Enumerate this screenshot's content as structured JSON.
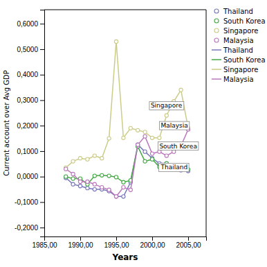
{
  "chart_data": {
    "type": "line",
    "xlabel": "Years",
    "ylabel": "Current account over Avg GDP",
    "x": [
      1988,
      1989,
      1990,
      1991,
      1992,
      1993,
      1994,
      1995,
      1996,
      1997,
      1998,
      1999,
      2000,
      2001,
      2002,
      2003,
      2004,
      2005
    ],
    "series": [
      {
        "name": "Thailand",
        "color": "#7777bb",
        "values": [
          -0.005,
          -0.03,
          -0.037,
          -0.045,
          -0.05,
          -0.05,
          -0.057,
          -0.078,
          -0.078,
          -0.022,
          0.125,
          0.098,
          0.072,
          0.052,
          0.052,
          0.038,
          0.025,
          0.022
        ]
      },
      {
        "name": "South Korea",
        "color": "#44aa44",
        "values": [
          0.0,
          -0.008,
          -0.008,
          -0.03,
          0.003,
          0.005,
          0.003,
          -0.002,
          -0.022,
          -0.015,
          0.118,
          0.06,
          0.068,
          0.038,
          0.052,
          0.038,
          0.038,
          0.028
        ]
      },
      {
        "name": "Singapore",
        "color": "#cccc88",
        "values": [
          0.035,
          0.06,
          0.072,
          0.068,
          0.082,
          0.072,
          0.15,
          0.53,
          0.152,
          0.19,
          0.182,
          0.175,
          0.152,
          0.152,
          0.24,
          0.295,
          0.34,
          0.19
        ]
      },
      {
        "name": "Malaysia",
        "color": "#bb77bb",
        "values": [
          0.03,
          0.01,
          -0.02,
          -0.02,
          -0.03,
          -0.042,
          -0.052,
          -0.078,
          -0.042,
          -0.052,
          0.125,
          0.158,
          0.09,
          0.098,
          0.082,
          0.098,
          0.12,
          0.185
        ]
      }
    ],
    "marker": "circle",
    "annotations": [
      {
        "text": "Singapore",
        "x": 1999.8,
        "y": 0.27
      },
      {
        "text": "Malaysia",
        "x": 2001.2,
        "y": 0.192
      },
      {
        "text": "South Korea",
        "x": 2001.0,
        "y": 0.112
      },
      {
        "text": "Thailand",
        "x": 2001.2,
        "y": 0.028
      }
    ],
    "xlim": [
      1985.0,
      2007.5
    ],
    "ylim": [
      -0.235,
      0.655
    ],
    "xticks": [
      {
        "value": 1985.0,
        "label": "1985,00"
      },
      {
        "value": 1990.0,
        "label": "1990,00"
      },
      {
        "value": 1995.0,
        "label": "1995,00"
      },
      {
        "value": 2000.0,
        "label": "2000,00"
      },
      {
        "value": 2005.0,
        "label": "2005,00"
      }
    ],
    "yticks": [
      {
        "value": -0.2,
        "label": "-0,2000"
      },
      {
        "value": -0.1,
        "label": "-0,1000"
      },
      {
        "value": 0.0,
        "label": "0,0000"
      },
      {
        "value": 0.1,
        "label": "0,1000"
      },
      {
        "value": 0.2,
        "label": "0,2000"
      },
      {
        "value": 0.3,
        "label": "0,3000"
      },
      {
        "value": 0.4,
        "label": "0,4000"
      },
      {
        "value": 0.5,
        "label": "0,5000"
      },
      {
        "value": 0.6,
        "label": "0,6000"
      }
    ],
    "grid": false,
    "legend": "right"
  }
}
